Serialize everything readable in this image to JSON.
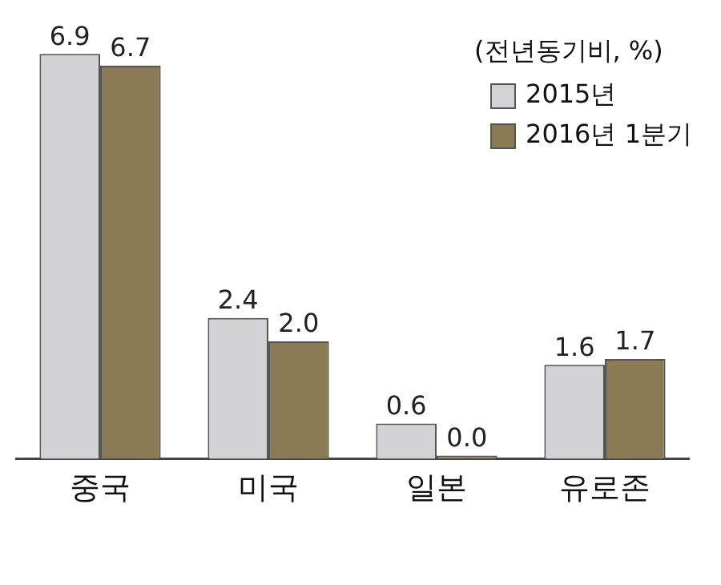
{
  "chart_data": {
    "type": "bar",
    "categories": [
      "중국",
      "미국",
      "일본",
      "유로존"
    ],
    "series": [
      {
        "name": "2015년",
        "color": "#d3d3d5",
        "values": [
          6.9,
          2.4,
          0.6,
          1.6
        ],
        "value_labels": [
          "6.9",
          "2.4",
          "0.6",
          "1.6"
        ]
      },
      {
        "name": "2016년 1분기",
        "color": "#8b7b55",
        "values": [
          6.7,
          2.0,
          0.0,
          1.7
        ],
        "value_labels": [
          "6.7",
          "2.0",
          "0.0",
          "1.7"
        ]
      }
    ],
    "legend_title": "(전년동기비, %)",
    "legend": "top right",
    "grid": false
  }
}
